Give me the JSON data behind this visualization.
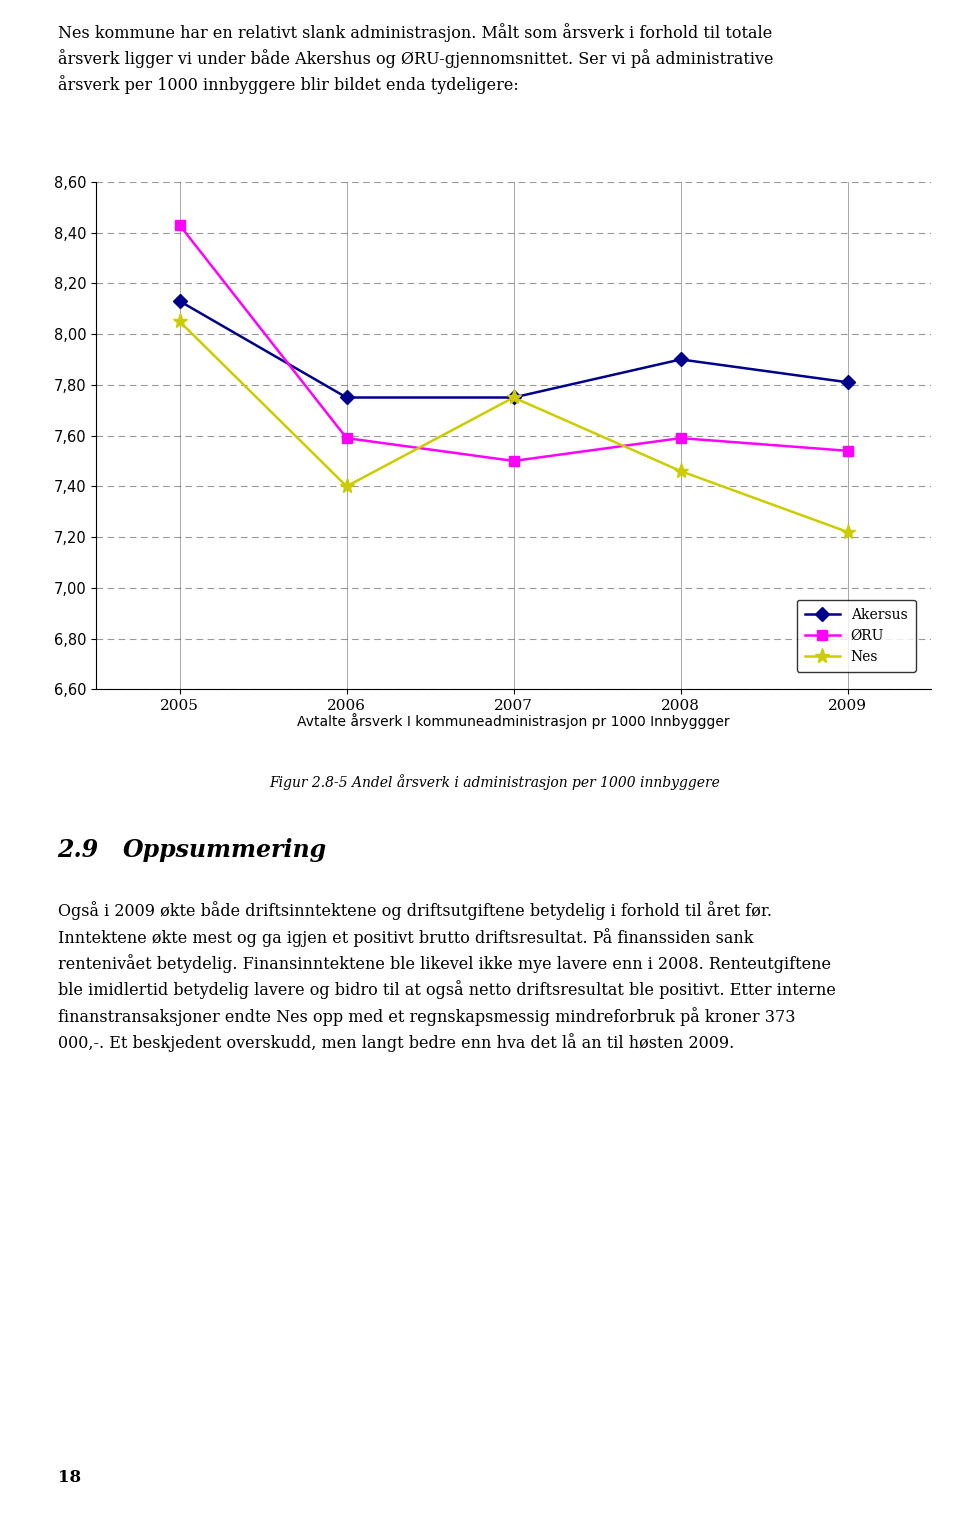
{
  "intro_line1": "Nes kommune har en relativt slank administrasjon. Målt som årsverk i forhold til totale",
  "intro_line2": "årsverk ligger vi under både Akershus og ØRU-gjennomsnittet. Ser vi på administrative",
  "intro_line3": "årsverk per 1000 innbyggere blir bildet enda tydeligere:",
  "years": [
    2005,
    2006,
    2007,
    2008,
    2009
  ],
  "akersus": [
    8.13,
    7.75,
    7.75,
    7.9,
    7.81
  ],
  "oru": [
    8.43,
    7.59,
    7.5,
    7.59,
    7.54
  ],
  "nes": [
    8.05,
    7.4,
    7.75,
    7.46,
    7.22
  ],
  "akersus_color": "#00008B",
  "oru_color": "#FF00FF",
  "nes_color": "#CCCC00",
  "ylim": [
    6.6,
    8.6
  ],
  "yticks": [
    6.6,
    6.8,
    7.0,
    7.2,
    7.4,
    7.6,
    7.8,
    8.0,
    8.2,
    8.4,
    8.6
  ],
  "xlabel": "Avtalte årsverk I kommuneadministrasjon pr 1000 Innbyggger",
  "figure_caption": "Figur 2.8-5 Andel årsverk i administrasjon per 1000 innbyggere",
  "section_number": "2.9",
  "section_title": "Oppsummering",
  "body_line1": "Også i 2009 økte både driftsinntektene og driftsutgiftene betydelig i forhold til året før.",
  "body_line2": "Inntektene økte mest og ga igjen et positivt brutto driftsresultat. På finanssiden sank",
  "body_line3": "rentenivået betydelig. Finansinntektene ble likevel ikke mye lavere enn i 2008. Renteutgiftene",
  "body_line4": "ble imidlertid betydelig lavere og bidro til at også netto driftsresultat ble positivt. Etter interne",
  "body_line5": "finanstransaksjoner endte Nes opp med et regnskapsmessig mindreforbruk på kroner 373",
  "body_line6": "000,-. Et beskjedent overskudd, men langt bedre enn hva det lå an til høsten 2009.",
  "page_number": "18"
}
